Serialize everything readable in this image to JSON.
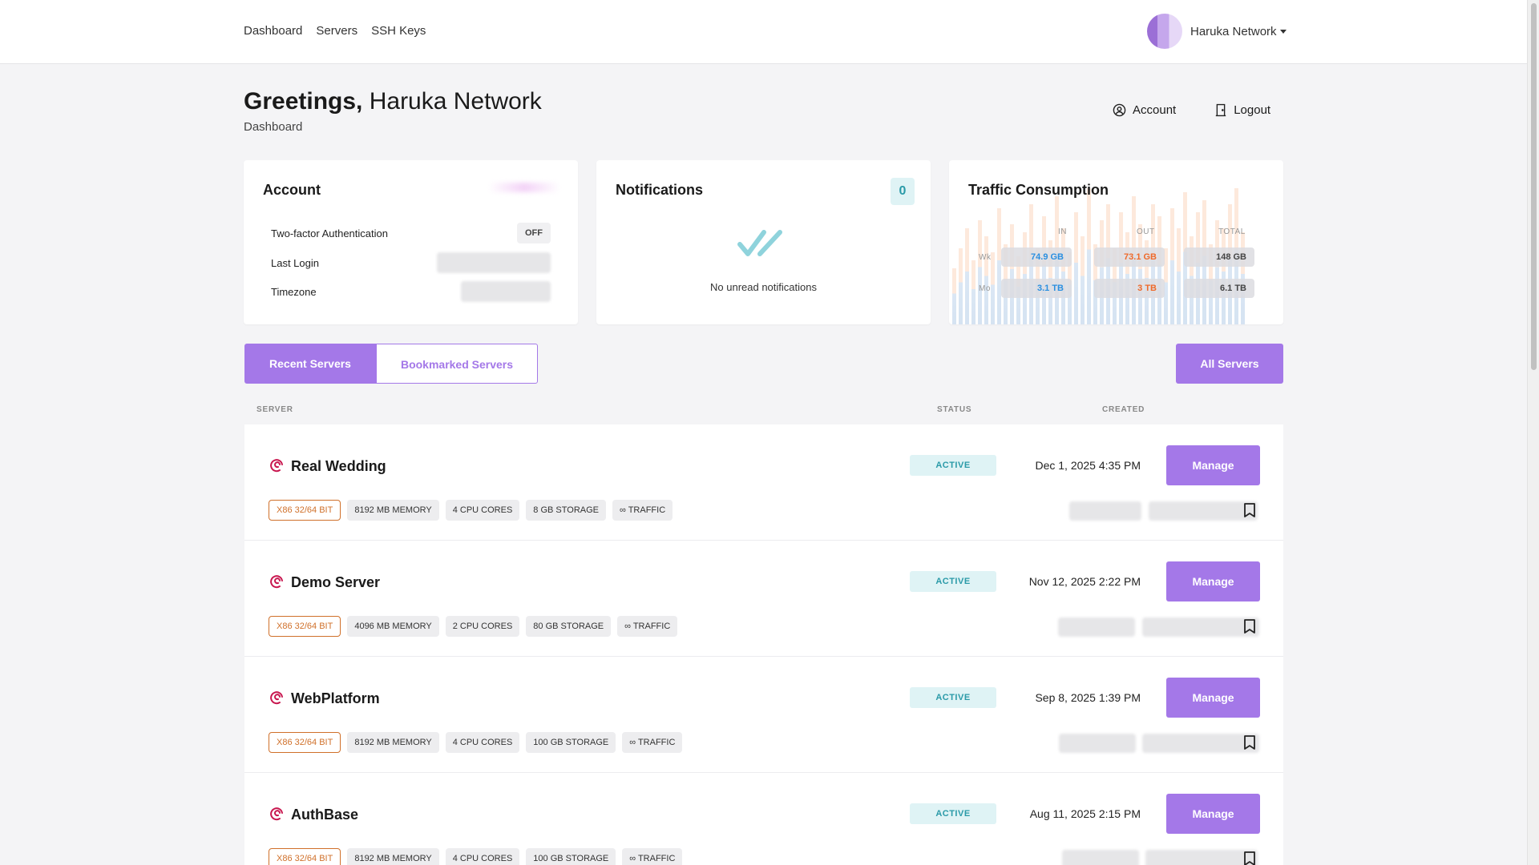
{
  "nav": {
    "items": [
      "Dashboard",
      "Servers",
      "SSH Keys"
    ],
    "user_name": "Haruka Network"
  },
  "greeting": {
    "prefix": "Greetings,",
    "name": "Haruka Network",
    "subtitle": "Dashboard"
  },
  "top_actions": {
    "account": "Account",
    "logout": "Logout"
  },
  "account_card": {
    "title": "Account",
    "rows": [
      {
        "label": "Two-factor Authentication",
        "value": "OFF"
      },
      {
        "label": "Last Login",
        "value": ""
      },
      {
        "label": "Timezone",
        "value": ""
      }
    ]
  },
  "notifications_card": {
    "title": "Notifications",
    "count": "0",
    "empty_text": "No unread notifications"
  },
  "traffic_card": {
    "title": "Traffic Consumption",
    "columns": [
      "IN",
      "OUT",
      "TOTAL"
    ],
    "rows": [
      {
        "label": "Wk",
        "in": "74.9 GB",
        "out": "73.1 GB",
        "total": "148 GB"
      },
      {
        "label": "Mo",
        "in": "3.1 TB",
        "out": "3 TB",
        "total": "6.1 TB"
      }
    ]
  },
  "tabs": {
    "recent": "Recent Servers",
    "bookmarked": "Bookmarked Servers",
    "all": "All Servers"
  },
  "table_headers": {
    "server": "SERVER",
    "status": "STATUS",
    "created": "CREATED"
  },
  "servers": [
    {
      "name": "Real Wedding",
      "status": "ACTIVE",
      "created": "Dec 1, 2025 4:35 PM",
      "manage": "Manage",
      "tags": [
        "X86 32/64 BIT",
        "8192 MB MEMORY",
        "4 CPU CORES",
        "8 GB STORAGE",
        "∞ TRAFFIC"
      ]
    },
    {
      "name": "Demo Server",
      "status": "ACTIVE",
      "created": "Nov 12, 2025 2:22 PM",
      "manage": "Manage",
      "tags": [
        "X86 32/64 BIT",
        "4096 MB MEMORY",
        "2 CPU CORES",
        "80 GB STORAGE",
        "∞ TRAFFIC"
      ]
    },
    {
      "name": "WebPlatform",
      "status": "ACTIVE",
      "created": "Sep 8, 2025 1:39 PM",
      "manage": "Manage",
      "tags": [
        "X86 32/64 BIT",
        "8192 MB MEMORY",
        "4 CPU CORES",
        "100 GB STORAGE",
        "∞ TRAFFIC"
      ]
    },
    {
      "name": "AuthBase",
      "status": "ACTIVE",
      "created": "Aug 11, 2025 2:15 PM",
      "manage": "Manage",
      "tags": [
        "X86 32/64 BIT",
        "8192 MB MEMORY",
        "4 CPU CORES",
        "100 GB STORAGE",
        "∞ TRAFFIC"
      ]
    }
  ],
  "colors": {
    "accent": "#a478e8",
    "active_bg": "#dff3f5",
    "active_text": "#2a9aa8",
    "arch_tag": "#d0702a",
    "traffic_in": "#2a8fe0",
    "traffic_out": "#ef6a2a"
  },
  "icons": {
    "os": "debian-swirl-icon",
    "bookmark": "bookmark-icon",
    "account": "user-circle-icon",
    "logout": "door-icon",
    "checks": "double-check-icon"
  }
}
